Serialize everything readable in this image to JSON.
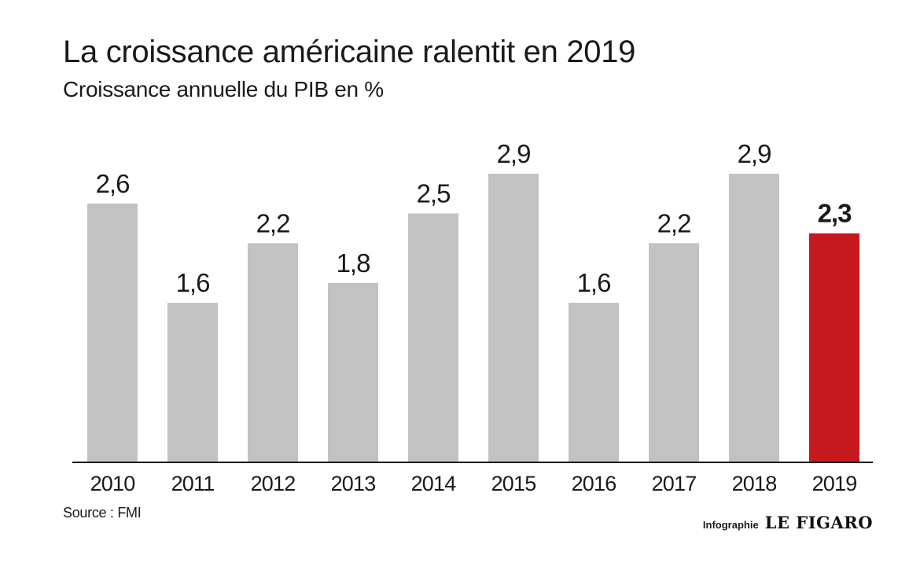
{
  "chart_data": {
    "type": "bar",
    "title": "La croissance américaine ralentit en 2019",
    "subtitle": "Croissance annuelle du PIB en %",
    "categories": [
      "2010",
      "2011",
      "2012",
      "2013",
      "2014",
      "2015",
      "2016",
      "2017",
      "2018",
      "2019"
    ],
    "values": [
      2.6,
      1.6,
      2.2,
      1.8,
      2.5,
      2.9,
      1.6,
      2.2,
      2.9,
      2.3
    ],
    "value_labels": [
      "2,6",
      "1,6",
      "2,2",
      "1,8",
      "2,5",
      "2,9",
      "1,6",
      "2,2",
      "2,9",
      "2,3"
    ],
    "highlight_index": 9,
    "ylim": [
      0,
      2.9
    ],
    "grid": false,
    "xlabel": "",
    "ylabel": "",
    "colors": {
      "bar": "#c2c2c2",
      "highlight": "#c8191f",
      "axis": "#1a1a1a",
      "text": "#1a1a1a"
    }
  },
  "footer": {
    "source": "Source : FMI",
    "credit_prefix": "Infographie",
    "credit_brand": "LE FIGARO"
  }
}
